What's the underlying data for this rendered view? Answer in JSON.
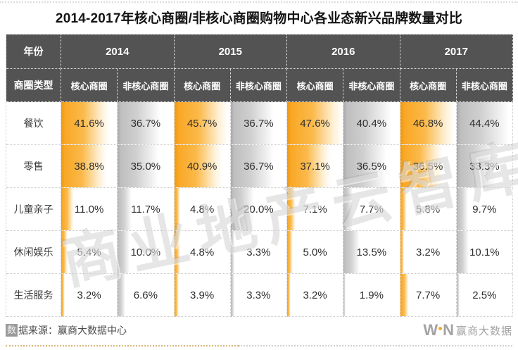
{
  "title": "2014-2017年核心商圈/非核心商圈购物中心各业态新兴品牌数量对比",
  "table": {
    "year_header_label": "年份",
    "circle_type_label": "商圈类型",
    "years": [
      "2014",
      "2015",
      "2016",
      "2017"
    ],
    "subcolumns": [
      "核心商圈",
      "非核心商圈"
    ],
    "row_labels": [
      "餐饮",
      "零售",
      "儿童亲子",
      "休闲娱乐",
      "生活服务"
    ],
    "unit": "%",
    "colors": {
      "core_bar": "#F9A826",
      "noncore_bar": "#BFBFBF",
      "header_bg": "#535353"
    }
  },
  "chart_data": {
    "type": "table",
    "title": "2014-2017年核心商圈/非核心商圈购物中心各业态新兴品牌数量对比",
    "row_categories": [
      "餐饮",
      "零售",
      "儿童亲子",
      "休闲娱乐",
      "生活服务"
    ],
    "column_groups": [
      "2014",
      "2015",
      "2016",
      "2017"
    ],
    "subcolumns": [
      "核心商圈",
      "非核心商圈"
    ],
    "unit": "%",
    "bar_scale_max": 47.6,
    "series": [
      {
        "name": "2014 核心商圈",
        "values": [
          41.6,
          38.8,
          11.0,
          5.4,
          3.2
        ]
      },
      {
        "name": "2014 非核心商圈",
        "values": [
          36.7,
          35.0,
          11.7,
          10.0,
          6.6
        ]
      },
      {
        "name": "2015 核心商圈",
        "values": [
          45.7,
          40.9,
          4.8,
          4.8,
          3.9
        ]
      },
      {
        "name": "2015 非核心商圈",
        "values": [
          36.7,
          36.7,
          20.0,
          3.3,
          3.3
        ]
      },
      {
        "name": "2016 核心商圈",
        "values": [
          47.6,
          37.1,
          7.1,
          5.0,
          3.2
        ]
      },
      {
        "name": "2016 非核心商圈",
        "values": [
          40.4,
          36.5,
          7.7,
          13.5,
          1.9
        ]
      },
      {
        "name": "2017 核心商圈",
        "values": [
          46.8,
          36.5,
          5.8,
          3.2,
          7.7
        ]
      },
      {
        "name": "2017 非核心商圈",
        "values": [
          44.4,
          33.3,
          9.7,
          10.1,
          2.5
        ]
      }
    ]
  },
  "watermark": "商业地产云智库",
  "footer": {
    "source_prefix_boxed": "数",
    "source_rest": "据来源：赢商大数据中心",
    "logo_w": "W",
    "logo_n": "N",
    "logo_cn": "赢商大数据"
  }
}
